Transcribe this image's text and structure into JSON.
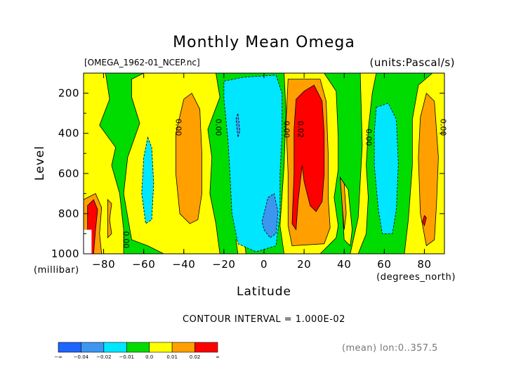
{
  "title": "Monthly Mean Omega",
  "file_label": "[OMEGA_1962-01_NCEP.nc]",
  "units_label": "(units:Pascal/s)",
  "contour_interval": "CONTOUR INTERVAL = 1.000E-02",
  "mean_info": "(mean) lon:0..357.5",
  "chart_data": {
    "type": "heatmap",
    "title": "Monthly Mean Omega",
    "xlabel": "Latitude",
    "ylabel": "Level",
    "x_units": "(degrees_north)",
    "y_units": "(millibar)",
    "xlim": [
      -90,
      90
    ],
    "ylim": [
      1000,
      100
    ],
    "x_ticks": [
      -80,
      -60,
      -40,
      -20,
      0,
      20,
      40,
      60,
      80
    ],
    "x_tick_labels": [
      "-80",
      "-60",
      "-40",
      "-20",
      "0",
      "20",
      "40",
      "60",
      "80"
    ],
    "y_ticks": [
      200,
      400,
      600,
      800,
      1000
    ],
    "y_tick_labels": [
      "200",
      "400",
      "600",
      "800",
      "1000"
    ],
    "contour_labels": [
      {
        "text": "0.00",
        "lat": -44,
        "level": 370
      },
      {
        "text": "0.00",
        "lat": -24,
        "level": 370
      },
      {
        "text": "0.00",
        "lat": 10,
        "level": 380
      },
      {
        "text": "0.02",
        "lat": 17,
        "level": 380
      },
      {
        "text": "0.00",
        "lat": 51,
        "level": 420
      },
      {
        "text": "0.00",
        "lat": 88,
        "level": 370
      },
      {
        "text": "0.00",
        "lat": -70,
        "level": 930
      }
    ],
    "colorbar": {
      "colors": [
        "#1e64ff",
        "#3c96f0",
        "#00e6ff",
        "#00dc00",
        "#ffff00",
        "#ffa000",
        "#ff0000"
      ],
      "labels": [
        "-∞",
        "-0.04",
        "-0.02",
        "-0.01",
        "0.0",
        "0.01",
        "0.02",
        "∞"
      ]
    },
    "regions": [
      {
        "level": "0.0",
        "color": "#00dc00",
        "points": [
          [
            -90,
            100
          ],
          [
            90,
            100
          ],
          [
            90,
            1000
          ],
          [
            -90,
            1000
          ]
        ]
      },
      {
        "level": "0.0",
        "color": "#ffff00",
        "points": [
          [
            -90,
            100
          ],
          [
            -79,
            100
          ],
          [
            -77,
            230
          ],
          [
            -82,
            360
          ],
          [
            -74,
            470
          ],
          [
            -76,
            560
          ],
          [
            -72,
            700
          ],
          [
            -70,
            880
          ],
          [
            -70,
            1000
          ],
          [
            -90,
            1000
          ]
        ]
      },
      {
        "level": "0.0",
        "color": "#ffff00",
        "points": [
          [
            -66,
            130
          ],
          [
            -60,
            100
          ],
          [
            -24,
            100
          ],
          [
            -22,
            220
          ],
          [
            -28,
            380
          ],
          [
            -26,
            520
          ],
          [
            -27,
            700
          ],
          [
            -24,
            850
          ],
          [
            -22,
            1000
          ],
          [
            -38,
            1000
          ],
          [
            -50,
            1000
          ],
          [
            -58,
            960
          ],
          [
            -66,
            930
          ],
          [
            -70,
            700
          ],
          [
            -68,
            520
          ],
          [
            -62,
            350
          ],
          [
            -66,
            220
          ]
        ]
      },
      {
        "level": "0.0",
        "color": "#ffff00",
        "points": [
          [
            -14,
            930
          ],
          [
            -10,
            920
          ],
          [
            -9,
            1000
          ],
          [
            -13,
            1000
          ]
        ]
      },
      {
        "level": "0.0",
        "color": "#ffff00",
        "points": [
          [
            10,
            100
          ],
          [
            30,
            100
          ],
          [
            36,
            190
          ],
          [
            37,
            420
          ],
          [
            37,
            580
          ],
          [
            35,
            720
          ],
          [
            37,
            860
          ],
          [
            36,
            920
          ],
          [
            28,
            1000
          ],
          [
            10,
            1000
          ],
          [
            8,
            860
          ],
          [
            10,
            560
          ],
          [
            11,
            300
          ]
        ]
      },
      {
        "level": "0.0",
        "color": "#ffff00",
        "points": [
          [
            38,
            620
          ],
          [
            42,
            680
          ],
          [
            44,
            880
          ],
          [
            43,
            960
          ],
          [
            40,
            930
          ],
          [
            39,
            760
          ]
        ]
      },
      {
        "level": "0.0",
        "color": "#ffff00",
        "points": [
          [
            48,
            100
          ],
          [
            56,
            100
          ],
          [
            54,
            200
          ],
          [
            52,
            380
          ],
          [
            51,
            560
          ],
          [
            52,
            720
          ],
          [
            51,
            900
          ],
          [
            47,
            1000
          ],
          [
            43,
            1000
          ],
          [
            47,
            820
          ],
          [
            49,
            460
          ]
        ]
      },
      {
        "level": "0.0",
        "color": "#ffff00",
        "points": [
          [
            70,
            1000
          ],
          [
            72,
            830
          ],
          [
            74,
            560
          ],
          [
            74,
            330
          ],
          [
            77,
            160
          ],
          [
            84,
            100
          ],
          [
            90,
            100
          ],
          [
            90,
            1000
          ]
        ]
      },
      {
        "level": "0.01",
        "color": "#ffa000",
        "points": [
          [
            -90,
            730
          ],
          [
            -84,
            700
          ],
          [
            -81,
            770
          ],
          [
            -82,
            900
          ],
          [
            -81,
            1000
          ],
          [
            -90,
            1000
          ]
        ]
      },
      {
        "level": "0.01",
        "color": "#ffa000",
        "points": [
          [
            -78,
            730
          ],
          [
            -76,
            750
          ],
          [
            -77,
            830
          ],
          [
            -76,
            900
          ],
          [
            -78,
            920
          ]
        ]
      },
      {
        "level": "0.01",
        "color": "#ffa000",
        "points": [
          [
            -40,
            230
          ],
          [
            -36,
            200
          ],
          [
            -32,
            280
          ],
          [
            -31,
            500
          ],
          [
            -31,
            700
          ],
          [
            -33,
            830
          ],
          [
            -37,
            850
          ],
          [
            -42,
            800
          ],
          [
            -44,
            600
          ],
          [
            -44,
            400
          ]
        ]
      },
      {
        "level": "0.01",
        "color": "#ffa000",
        "points": [
          [
            12,
            130
          ],
          [
            28,
            130
          ],
          [
            31,
            240
          ],
          [
            32,
            500
          ],
          [
            32,
            720
          ],
          [
            33,
            870
          ],
          [
            30,
            950
          ],
          [
            14,
            960
          ],
          [
            12,
            860
          ],
          [
            12,
            600
          ],
          [
            11,
            340
          ]
        ]
      },
      {
        "level": "0.01",
        "color": "#ffa000",
        "points": [
          [
            38,
            620
          ],
          [
            40,
            650
          ],
          [
            41,
            800
          ],
          [
            40,
            880
          ],
          [
            39,
            760
          ]
        ]
      },
      {
        "level": "0.01",
        "color": "#ffa000",
        "points": [
          [
            78,
            320
          ],
          [
            81,
            200
          ],
          [
            85,
            240
          ],
          [
            87,
            520
          ],
          [
            86,
            760
          ],
          [
            85,
            930
          ],
          [
            81,
            960
          ],
          [
            78,
            800
          ],
          [
            77,
            520
          ]
        ]
      },
      {
        "level": "0.02",
        "color": "#ff0000",
        "points": [
          [
            16,
            230
          ],
          [
            20,
            190
          ],
          [
            25,
            160
          ],
          [
            29,
            240
          ],
          [
            30,
            400
          ],
          [
            30,
            600
          ],
          [
            29,
            740
          ],
          [
            26,
            790
          ],
          [
            23,
            760
          ],
          [
            20,
            640
          ],
          [
            19,
            560
          ],
          [
            17,
            740
          ],
          [
            16,
            880
          ],
          [
            14,
            850
          ],
          [
            15,
            600
          ],
          [
            15,
            380
          ]
        ]
      },
      {
        "level": "0.02",
        "color": "#ff0000",
        "points": [
          [
            -88,
            760
          ],
          [
            -85,
            730
          ],
          [
            -83,
            780
          ],
          [
            -84,
            880
          ],
          [
            -85,
            1000
          ],
          [
            -87,
            1000
          ],
          [
            -88,
            880
          ]
        ]
      },
      {
        "level": "0.02",
        "color": "#ff0000",
        "points": [
          [
            80,
            810
          ],
          [
            81,
            820
          ],
          [
            80,
            860
          ],
          [
            79,
            840
          ]
        ]
      },
      {
        "level": "-0.01",
        "color": "#00e6ff",
        "points": [
          [
            -58,
            420
          ],
          [
            -56,
            470
          ],
          [
            -55,
            650
          ],
          [
            -56,
            830
          ],
          [
            -59,
            850
          ],
          [
            -61,
            700
          ],
          [
            -60,
            520
          ]
        ]
      },
      {
        "level": "-0.01",
        "color": "#00e6ff",
        "points": [
          [
            -20,
            140
          ],
          [
            -10,
            120
          ],
          [
            6,
            110
          ],
          [
            9,
            200
          ],
          [
            9,
            400
          ],
          [
            8,
            600
          ],
          [
            8,
            800
          ],
          [
            6,
            960
          ],
          [
            -4,
            990
          ],
          [
            -13,
            950
          ],
          [
            -16,
            800
          ],
          [
            -17,
            600
          ],
          [
            -18,
            430
          ],
          [
            -20,
            230
          ]
        ]
      },
      {
        "level": "-0.01",
        "color": "#00e6ff",
        "points": [
          [
            56,
            270
          ],
          [
            62,
            250
          ],
          [
            66,
            330
          ],
          [
            67,
            550
          ],
          [
            66,
            780
          ],
          [
            64,
            900
          ],
          [
            59,
            900
          ],
          [
            57,
            780
          ],
          [
            55,
            560
          ],
          [
            55,
            400
          ]
        ]
      },
      {
        "level": "-0.02",
        "color": "#3c96f0",
        "points": [
          [
            -14,
            330
          ],
          [
            -13,
            300
          ],
          [
            -12,
            390
          ],
          [
            -13,
            420
          ]
        ]
      },
      {
        "level": "-0.02",
        "color": "#3c96f0",
        "points": [
          [
            2,
            720
          ],
          [
            5,
            700
          ],
          [
            7,
            790
          ],
          [
            6,
            900
          ],
          [
            3,
            920
          ],
          [
            0,
            880
          ],
          [
            -1,
            840
          ]
        ]
      },
      {
        "level": "white",
        "color": "#ffffff",
        "points": [
          [
            -90,
            880
          ],
          [
            -86,
            880
          ],
          [
            -86,
            1000
          ],
          [
            -90,
            1000
          ]
        ]
      }
    ]
  }
}
